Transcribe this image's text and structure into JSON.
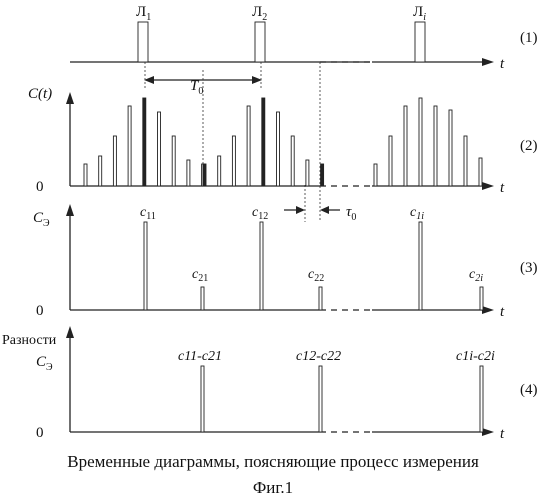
{
  "rows": {
    "r1": {
      "tag": "(1)",
      "t": "t",
      "pulses": [
        "Л",
        "Л",
        "Л"
      ],
      "pulse_sub": [
        "1",
        "2",
        "i"
      ]
    },
    "r2": {
      "tag": "(2)",
      "t": "t",
      "ylabel": "C(t)",
      "zero": "0",
      "period": "T",
      "period_sub": "0",
      "tau": "τ",
      "tau_sub": "0"
    },
    "r3": {
      "tag": "(3)",
      "t": "t",
      "ylabel": "C",
      "ylabel_sub": "Э",
      "zero": "0",
      "labels": [
        [
          "c",
          "11"
        ],
        [
          "c",
          "21"
        ],
        [
          "c",
          "12"
        ],
        [
          "c",
          "22"
        ],
        [
          "c",
          "1i"
        ],
        [
          "c",
          "2i"
        ]
      ]
    },
    "r4": {
      "tag": "(4)",
      "t": "t",
      "ylabel_top": "Разности",
      "ylabel": "C",
      "ylabel_sub": "Э",
      "zero": "0",
      "labels": [
        "c11-c21",
        "c12-c22",
        "c1i-c2i"
      ]
    }
  },
  "caption": "Временные диаграммы, поясняющие процесс измерения",
  "figno": "Фиг.1"
}
